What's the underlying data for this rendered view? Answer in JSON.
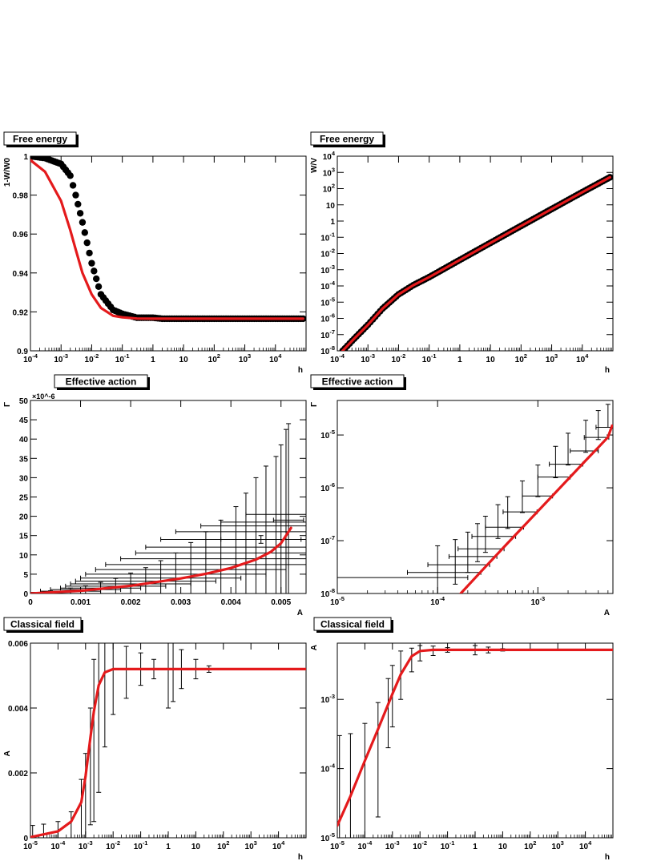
{
  "chart_data": [
    {
      "id": "p1",
      "type": "scatter",
      "title": "Free energy",
      "xlabel": "h",
      "ylabel": "1-W/W0",
      "xscale": "log",
      "xlim": [
        0.0001,
        100000
      ],
      "ylim": [
        0.9,
        1.0
      ],
      "xticks": [
        "10^-4",
        "10^-3",
        "10^-2",
        "10^-1",
        "1",
        "10",
        "10^2",
        "10^3",
        "10^4"
      ],
      "yticks": [
        "0.9",
        "0.92",
        "0.94",
        "0.96",
        "0.98",
        "1"
      ],
      "series": [
        {
          "style": "markers",
          "color": "#000000",
          "x": [
            0.0001,
            0.0003,
            0.001,
            0.002,
            0.003,
            0.005,
            0.01,
            0.02,
            0.05,
            0.1,
            0.3,
            1,
            2,
            5,
            10,
            100,
            1000,
            10000,
            80000
          ],
          "y": [
            1.0,
            0.999,
            0.996,
            0.99,
            0.98,
            0.966,
            0.945,
            0.929,
            0.921,
            0.919,
            0.917,
            0.917,
            0.9165,
            0.9165,
            0.9165,
            0.9165,
            0.9165,
            0.9165,
            0.9165
          ]
        },
        {
          "style": "line",
          "color": "#e41a1c",
          "x": [
            0.0001,
            0.0003,
            0.001,
            0.002,
            0.003,
            0.005,
            0.01,
            0.02,
            0.05,
            0.1,
            0.3,
            1,
            10,
            100,
            1000,
            10000,
            80000
          ],
          "y": [
            0.998,
            0.992,
            0.977,
            0.962,
            0.952,
            0.94,
            0.929,
            0.922,
            0.918,
            0.9172,
            0.9166,
            0.9165,
            0.9165,
            0.9165,
            0.9165,
            0.9165,
            0.9165
          ]
        }
      ]
    },
    {
      "id": "p2",
      "type": "scatter",
      "title": "Free energy",
      "xlabel": "h",
      "ylabel": "W/V",
      "xscale": "log",
      "yscale": "log",
      "xlim": [
        0.0001,
        100000
      ],
      "ylim": [
        1e-08,
        10000
      ],
      "xticks": [
        "10^-4",
        "10^-3",
        "10^-2",
        "10^-1",
        "1",
        "10",
        "10^2",
        "10^3",
        "10^4"
      ],
      "yticks": [
        "10^-8",
        "10^-7",
        "10^-6",
        "10^-5",
        "10^-4",
        "10^-3",
        "10^-2",
        "10^-1",
        "1",
        "10",
        "10^2",
        "10^3",
        "10^4"
      ],
      "series": [
        {
          "style": "markers",
          "color": "#000000",
          "x": [
            0.00015,
            0.0003,
            0.001,
            0.003,
            0.01,
            0.03,
            0.1,
            1,
            10,
            100,
            1000,
            10000,
            80000
          ],
          "y": [
            1e-08,
            4e-08,
            4e-07,
            4e-06,
            3e-05,
            0.00011,
            0.00035,
            0.004,
            0.045,
            0.5,
            5.5,
            60,
            500
          ]
        },
        {
          "style": "line",
          "color": "#e41a1c",
          "x": [
            0.00015,
            0.0003,
            0.001,
            0.003,
            0.01,
            0.03,
            0.1,
            1,
            10,
            100,
            1000,
            10000,
            80000
          ],
          "y": [
            1e-08,
            4e-08,
            4e-07,
            4e-06,
            3e-05,
            0.00011,
            0.00035,
            0.004,
            0.045,
            0.5,
            5.5,
            60,
            500
          ]
        }
      ]
    },
    {
      "id": "p3",
      "type": "scatter",
      "title": "Effective action",
      "xlabel": "A",
      "ylabel": "Γ",
      "exponent": "×10^-6",
      "xlim": [
        0,
        0.0055
      ],
      "ylim": [
        0,
        50
      ],
      "xticks": [
        "0",
        "0.001",
        "0.002",
        "0.003",
        "0.004",
        "0.005"
      ],
      "yticks": [
        "0",
        "5",
        "10",
        "15",
        "20",
        "25",
        "30",
        "35",
        "40",
        "45",
        "50"
      ],
      "errorbars": [
        {
          "x": 0.0004,
          "y": 0.3,
          "ex": 0.0004,
          "ey": 0.4
        },
        {
          "x": 0.0008,
          "y": 0.6,
          "ex": 0.0006,
          "ey": 0.8
        },
        {
          "x": 0.0011,
          "y": 1.0,
          "ex": 0.0007,
          "ey": 1.0
        },
        {
          "x": 0.0014,
          "y": 1.4,
          "ex": 0.0008,
          "ey": 1.5
        },
        {
          "x": 0.0017,
          "y": 1.9,
          "ex": 0.001,
          "ey": 2.0
        },
        {
          "x": 0.002,
          "y": 2.5,
          "ex": 0.0012,
          "ey": 2.8
        },
        {
          "x": 0.0023,
          "y": 3.2,
          "ex": 0.0014,
          "ey": 3.5
        },
        {
          "x": 0.0026,
          "y": 4.0,
          "ex": 0.0016,
          "ey": 4.5
        },
        {
          "x": 0.0029,
          "y": 5.0,
          "ex": 0.0018,
          "ey": 5.5
        },
        {
          "x": 0.0032,
          "y": 6.2,
          "ex": 0.0019,
          "ey": 7.0
        },
        {
          "x": 0.0035,
          "y": 7.5,
          "ex": 0.002,
          "ey": 8.5
        },
        {
          "x": 0.0038,
          "y": 9.0,
          "ex": 0.002,
          "ey": 10
        },
        {
          "x": 0.0041,
          "y": 10.5,
          "ex": 0.002,
          "ey": 12
        },
        {
          "x": 0.0043,
          "y": 12,
          "ex": 0.002,
          "ey": 14
        },
        {
          "x": 0.0045,
          "y": 14,
          "ex": 0.0019,
          "ey": 16
        },
        {
          "x": 0.0047,
          "y": 16,
          "ex": 0.0018,
          "ey": 17
        },
        {
          "x": 0.0049,
          "y": 17.5,
          "ex": 0.0015,
          "ey": 18
        },
        {
          "x": 0.005,
          "y": 18.5,
          "ex": 0.0012,
          "ey": 20
        },
        {
          "x": 0.0051,
          "y": 20.5,
          "ex": 0.0008,
          "ey": 22
        },
        {
          "x": 0.00515,
          "y": 19,
          "ex": 0.0003,
          "ey": 25
        },
        {
          "x": 0.0046,
          "y": 14,
          "ex": 0.0008,
          "ey": 1.0
        }
      ],
      "series": [
        {
          "style": "line",
          "color": "#e41a1c",
          "x": [
            0,
            0.001,
            0.002,
            0.003,
            0.0035,
            0.004,
            0.0045,
            0.0048,
            0.005,
            0.0051,
            0.0052
          ],
          "y": [
            0,
            0.7,
            2.0,
            3.9,
            5.1,
            6.6,
            8.8,
            10.8,
            13.0,
            15.0,
            17.0
          ]
        }
      ]
    },
    {
      "id": "p4",
      "type": "scatter",
      "title": "Effective action",
      "xlabel": "A",
      "ylabel": "Γ",
      "xscale": "log",
      "yscale": "log",
      "xlim": [
        1e-05,
        0.0056
      ],
      "ylim": [
        1e-08,
        4.5e-05
      ],
      "xticks": [
        "10^-5",
        "10^-4",
        "10^-3"
      ],
      "yticks": [
        "10^-8",
        "10^-7",
        "10^-6",
        "10^-5"
      ],
      "errorbars": [
        {
          "x": 0.0001,
          "y": 2e-08,
          "ex_lo": 9e-05,
          "ex_hi": 0.0001,
          "ey_lo": 1e-08,
          "ey_hi": 6e-08
        },
        {
          "x": 0.00015,
          "y": 2.5e-08,
          "ex_lo": 0.0001,
          "ex_hi": 0.00012,
          "ey_lo": 1e-08,
          "ey_hi": 8e-08
        },
        {
          "x": 0.0002,
          "y": 3.5e-08,
          "ex_lo": 0.00012,
          "ex_hi": 0.00013,
          "ey_lo": 1e-08,
          "ey_hi": 1.1e-07
        },
        {
          "x": 0.00025,
          "y": 5e-08,
          "ex_lo": 0.00012,
          "ex_hi": 0.00014,
          "ey_lo": 1e-08,
          "ey_hi": 1.6e-07
        },
        {
          "x": 0.0003,
          "y": 7e-08,
          "ex_lo": 0.00014,
          "ex_hi": 0.00016,
          "ey_lo": 1e-08,
          "ey_hi": 2.2e-07
        },
        {
          "x": 0.0004,
          "y": 1.2e-07,
          "ex_lo": 0.00018,
          "ex_hi": 0.0002,
          "ey_lo": 1e-08,
          "ey_hi": 3.6e-07
        },
        {
          "x": 0.0005,
          "y": 1.8e-07,
          "ex_lo": 0.0002,
          "ex_hi": 0.00022,
          "ey_lo": 1e-08,
          "ey_hi": 5e-07
        },
        {
          "x": 0.0007,
          "y": 3.5e-07,
          "ex_lo": 0.00025,
          "ex_hi": 0.00028,
          "ey_lo": 1e-08,
          "ey_hi": 1e-06
        },
        {
          "x": 0.001,
          "y": 7e-07,
          "ex_lo": 0.0003,
          "ex_hi": 0.0004,
          "ey_lo": 2e-08,
          "ey_hi": 2e-06
        },
        {
          "x": 0.0015,
          "y": 1.6e-06,
          "ex_lo": 0.0005,
          "ex_hi": 0.0006,
          "ey_lo": 5e-08,
          "ey_hi": 4.5e-06
        },
        {
          "x": 0.002,
          "y": 2.8e-06,
          "ex_lo": 0.0007,
          "ex_hi": 0.0008,
          "ey_lo": 1e-07,
          "ey_hi": 8e-06
        },
        {
          "x": 0.003,
          "y": 5e-06,
          "ex_lo": 0.0009,
          "ex_hi": 0.001,
          "ey_lo": 3e-07,
          "ey_hi": 1.4e-05
        },
        {
          "x": 0.004,
          "y": 9e-06,
          "ex_lo": 0.0011,
          "ex_hi": 0.0011,
          "ey_lo": 8e-07,
          "ey_hi": 2e-05
        },
        {
          "x": 0.005,
          "y": 1.4e-05,
          "ex_lo": 0.0012,
          "ex_hi": 0.0004,
          "ey_lo": 1e-08,
          "ey_hi": 2.4e-05
        }
      ],
      "series": [
        {
          "style": "line",
          "color": "#e41a1c",
          "x": [
            0.00017,
            0.0003,
            0.0005,
            0.001,
            0.002,
            0.003,
            0.004,
            0.005,
            0.0055
          ],
          "y": [
            1e-08,
            3.2e-08,
            9e-08,
            3.6e-07,
            1.45e-06,
            3.3e-06,
            5.8e-06,
            9.1e-06,
            1.5e-05
          ]
        }
      ]
    },
    {
      "id": "p5",
      "type": "scatter",
      "title": "Classical field",
      "xlabel": "h",
      "ylabel": "A",
      "xscale": "log",
      "xlim": [
        1e-05,
        100000
      ],
      "ylim": [
        0,
        0.006
      ],
      "xticks": [
        "10^-5",
        "10^-4",
        "10^-3",
        "10^-2",
        "10^-1",
        "1",
        "10",
        "10^2",
        "10^3",
        "10^4"
      ],
      "yticks": [
        "0",
        "0.002",
        "0.004",
        "0.006"
      ],
      "errorbars": [
        {
          "x": 1.2e-05,
          "y": 8e-05,
          "ey": 0.0003
        },
        {
          "x": 3e-05,
          "y": 0.00012,
          "ey": 0.0003
        },
        {
          "x": 0.0001,
          "y": 0.0002,
          "ey": 0.0003
        },
        {
          "x": 0.0003,
          "y": 0.0004,
          "ey": 0.0004
        },
        {
          "x": 0.0007,
          "y": 0.0009,
          "ey": 0.0009
        },
        {
          "x": 0.001,
          "y": 0.0013,
          "ey": 0.0013
        },
        {
          "x": 0.0015,
          "y": 0.0022,
          "ey": 0.0018
        },
        {
          "x": 0.002,
          "y": 0.003,
          "ey": 0.0025
        },
        {
          "x": 0.003,
          "y": 0.0039,
          "ey": 0.0025
        },
        {
          "x": 0.005,
          "y": 0.0046,
          "ey": 0.0018
        },
        {
          "x": 0.01,
          "y": 0.005,
          "ey": 0.0012
        },
        {
          "x": 0.03,
          "y": 0.0051,
          "ey": 0.0008
        },
        {
          "x": 0.1,
          "y": 0.0052,
          "ey": 0.0005
        },
        {
          "x": 0.3,
          "y": 0.0052,
          "ey": 0.0003
        },
        {
          "x": 1,
          "y": 0.0052,
          "ey": 0.0012
        },
        {
          "x": 1.5,
          "y": 0.0051,
          "ey": 0.0009
        },
        {
          "x": 3,
          "y": 0.0052,
          "ey": 0.0006
        },
        {
          "x": 10,
          "y": 0.0052,
          "ey": 0.0003
        },
        {
          "x": 30,
          "y": 0.0052,
          "ey": 0.0001
        }
      ],
      "series": [
        {
          "style": "line",
          "color": "#e41a1c",
          "x": [
            1e-05,
            0.0001,
            0.0003,
            0.0007,
            0.001,
            0.0015,
            0.002,
            0.003,
            0.005,
            0.01,
            0.1,
            1,
            100000
          ],
          "y": [
            2e-05,
            0.0002,
            0.0005,
            0.0011,
            0.0019,
            0.0031,
            0.0039,
            0.0047,
            0.0051,
            0.0052,
            0.0052,
            0.0052,
            0.0052
          ]
        }
      ]
    },
    {
      "id": "p6",
      "type": "scatter",
      "title": "Classical field",
      "xlabel": "h",
      "ylabel": "A",
      "xscale": "log",
      "yscale": "log",
      "xlim": [
        1e-05,
        100000
      ],
      "ylim": [
        1e-05,
        0.0065
      ],
      "xticks": [
        "10^-5",
        "10^-4",
        "10^-3",
        "10^-2",
        "10^-1",
        "1",
        "10",
        "10^2",
        "10^3",
        "10^4"
      ],
      "yticks": [
        "10^-5",
        "10^-4",
        "10^-3"
      ],
      "errorbars": [
        {
          "x": 1.2e-05,
          "y": 0.00012,
          "ey_lo": 0.00011,
          "ey_hi": 0.00018
        },
        {
          "x": 3e-05,
          "y": 0.00012,
          "ey_lo": 0.00011,
          "ey_hi": 0.0002
        },
        {
          "x": 0.0001,
          "y": 0.00015,
          "ey_lo": 0.00014,
          "ey_hi": 0.0003
        },
        {
          "x": 0.0003,
          "y": 0.0003,
          "ey_lo": 0.00028,
          "ey_hi": 0.0006
        },
        {
          "x": 0.0007,
          "y": 0.0008,
          "ey_lo": 0.0006,
          "ey_hi": 0.0012
        },
        {
          "x": 0.001,
          "y": 0.0013,
          "ey_lo": 0.0009,
          "ey_hi": 0.0018
        },
        {
          "x": 0.002,
          "y": 0.0025,
          "ey_lo": 0.0015,
          "ey_hi": 0.0025
        },
        {
          "x": 0.005,
          "y": 0.004,
          "ey_lo": 0.0015,
          "ey_hi": 0.0015
        },
        {
          "x": 0.01,
          "y": 0.0048,
          "ey_lo": 0.0012,
          "ey_hi": 0.0012
        },
        {
          "x": 0.03,
          "y": 0.0051,
          "ey_lo": 0.0008,
          "ey_hi": 0.0008
        },
        {
          "x": 0.1,
          "y": 0.0052,
          "ey_lo": 0.0004,
          "ey_hi": 0.0004
        },
        {
          "x": 1,
          "y": 0.0052,
          "ey_lo": 0.0008,
          "ey_hi": 0.0008
        },
        {
          "x": 3,
          "y": 0.0052,
          "ey_lo": 0.0005,
          "ey_hi": 0.0005
        },
        {
          "x": 10,
          "y": 0.0052,
          "ey_lo": 0.0002,
          "ey_hi": 0.0002
        }
      ],
      "series": [
        {
          "style": "line",
          "color": "#e41a1c",
          "x": [
            1e-05,
            3e-05,
            0.0001,
            0.0003,
            0.001,
            0.002,
            0.005,
            0.01,
            0.03,
            0.1,
            1,
            100000
          ],
          "y": [
            1.5e-05,
            4e-05,
            0.00013,
            0.00037,
            0.0012,
            0.0023,
            0.0042,
            0.005,
            0.0052,
            0.0052,
            0.0052,
            0.0052
          ]
        }
      ]
    }
  ]
}
